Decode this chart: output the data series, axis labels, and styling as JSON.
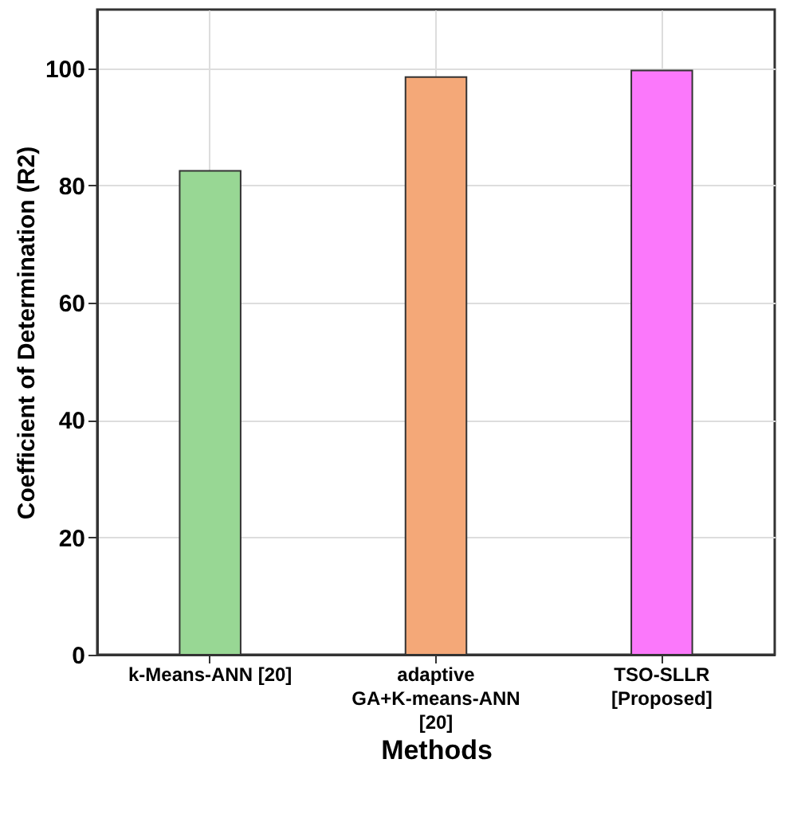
{
  "chart_data": {
    "type": "bar",
    "xlabel": "Methods",
    "ylabel": "Coefficient of Determination (R2)",
    "categories": [
      "k-Means-ANN [20]",
      "adaptive GA+K-means-ANN [20]",
      "TSO-SLLR [Proposed]"
    ],
    "values": [
      82.5,
      98.5,
      99.6
    ],
    "colors": [
      "#98d794",
      "#f4a878",
      "#fb78fb"
    ],
    "ylim": [
      0,
      110
    ],
    "yticks": [
      0,
      20,
      40,
      60,
      80,
      100
    ],
    "grid": true
  }
}
